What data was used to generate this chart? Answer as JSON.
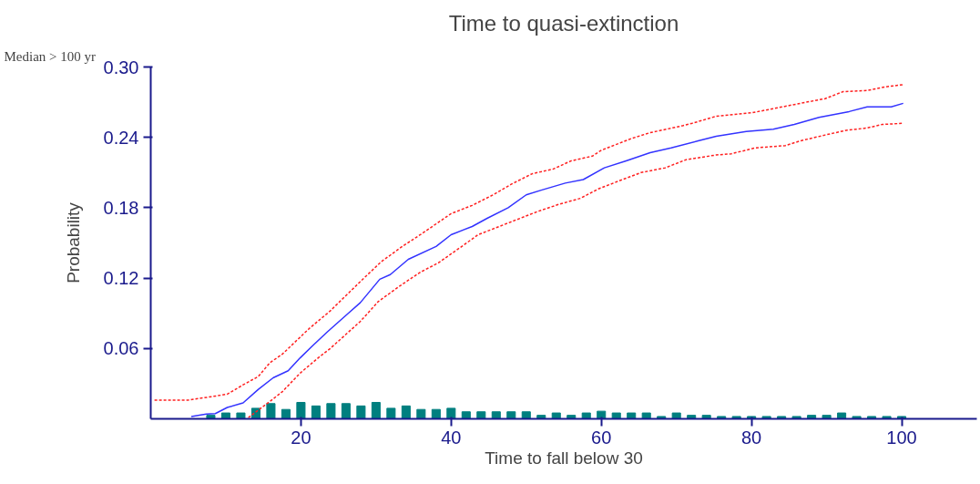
{
  "chart_data": {
    "type": "line",
    "title": "Time to quasi-extinction",
    "xlabel": "Time to fall below 30",
    "ylabel": "Probability",
    "annotations": [
      "Median > 100 yr"
    ],
    "xlim": [
      0,
      110
    ],
    "xticks": [
      20,
      40,
      60,
      80,
      100
    ],
    "ylim": [
      0,
      0.3
    ],
    "yticks": [
      {
        "value": 0.06,
        "label": "0.06"
      },
      {
        "value": 0.12,
        "label": "0.12"
      },
      {
        "value": 0.18,
        "label": "0.18"
      },
      {
        "value": 0.24,
        "label": "0.24"
      },
      {
        "value": 0.3,
        "label": "0.30"
      }
    ],
    "grid": false,
    "series": [
      {
        "type": "bar",
        "color": "#007f7f",
        "x": [
          8,
          10,
          12,
          14,
          16,
          18,
          20,
          22,
          24,
          26,
          28,
          30,
          32,
          34,
          36,
          38,
          40,
          42,
          44,
          46,
          48,
          50,
          52,
          54,
          56,
          58,
          60,
          62,
          64,
          66,
          68,
          70,
          72,
          74,
          76,
          78,
          80,
          82,
          84,
          86,
          88,
          90,
          92,
          94,
          96,
          98,
          100
        ],
        "values": [
          0.003,
          0.005,
          0.005,
          0.009,
          0.013,
          0.008,
          0.014,
          0.011,
          0.013,
          0.013,
          0.011,
          0.014,
          0.009,
          0.011,
          0.008,
          0.008,
          0.009,
          0.006,
          0.006,
          0.006,
          0.006,
          0.006,
          0.003,
          0.005,
          0.003,
          0.005,
          0.0065,
          0.005,
          0.005,
          0.005,
          0.002,
          0.005,
          0.003,
          0.003,
          0.002,
          0.002,
          0.002,
          0.002,
          0.002,
          0.002,
          0.003,
          0.003,
          0.005,
          0.002,
          0.002,
          0.002,
          0.002
        ]
      },
      {
        "color": "#ff2020",
        "line_style": "dashed",
        "x": [
          0.5,
          5,
          8.2,
          10.2,
          12.3,
          14.3,
          15.9,
          17.5,
          21.1,
          23.9,
          27.9,
          30.7,
          33.5,
          35.9,
          40,
          42.8,
          45.6,
          48,
          50.8,
          53.6,
          56,
          58.8,
          60,
          64,
          66.5,
          70.9,
          72.1,
          75.3,
          80.1,
          83.3,
          87.3,
          89.8,
          92.2,
          95.4,
          97.8,
          100.2
        ],
        "values": [
          0.016,
          0.016,
          0.019,
          0.021,
          0.029,
          0.036,
          0.048,
          0.055,
          0.077,
          0.092,
          0.117,
          0.134,
          0.147,
          0.157,
          0.175,
          0.182,
          0.191,
          0.2,
          0.209,
          0.213,
          0.22,
          0.224,
          0.229,
          0.239,
          0.244,
          0.25,
          0.252,
          0.258,
          0.261,
          0.265,
          0.27,
          0.273,
          0.279,
          0.28,
          0.283,
          0.285
        ]
      },
      {
        "color": "#3333ff",
        "line_style": "solid",
        "x": [
          5.4,
          7.4,
          8.6,
          10.2,
          12.3,
          14.3,
          16.3,
          18.3,
          19.9,
          21.5,
          23.5,
          26.3,
          27.9,
          30.5,
          31.9,
          34.3,
          38,
          40,
          42.8,
          44.8,
          47.6,
          50,
          52,
          55.2,
          57.6,
          60.4,
          63.3,
          66.5,
          69.3,
          72.9,
          75.3,
          79.3,
          82.9,
          85.7,
          89,
          93,
          95.4,
          98.6,
          100.2
        ],
        "values": [
          0.002,
          0.004,
          0.0045,
          0.0097,
          0.0136,
          0.025,
          0.035,
          0.041,
          0.052,
          0.062,
          0.074,
          0.09,
          0.099,
          0.119,
          0.123,
          0.136,
          0.147,
          0.157,
          0.164,
          0.171,
          0.18,
          0.191,
          0.195,
          0.201,
          0.204,
          0.214,
          0.22,
          0.227,
          0.231,
          0.237,
          0.241,
          0.245,
          0.247,
          0.251,
          0.257,
          0.262,
          0.266,
          0.266,
          0.269
        ]
      },
      {
        "color": "#ff2020",
        "line_style": "dashed",
        "x": [
          13,
          15.9,
          17.5,
          19.9,
          22.3,
          23.9,
          27.9,
          30.3,
          33.1,
          35.9,
          38.3,
          41.2,
          43.6,
          46.4,
          49.2,
          51.6,
          54.4,
          57.2,
          59.6,
          62.4,
          65.3,
          68.5,
          71.3,
          75.3,
          77.3,
          80.5,
          84.5,
          86.5,
          89.8,
          92.6,
          95.4,
          97.4,
          100.2
        ],
        "values": [
          0.001,
          0.015,
          0.023,
          0.039,
          0.052,
          0.06,
          0.083,
          0.1,
          0.113,
          0.125,
          0.133,
          0.146,
          0.157,
          0.164,
          0.171,
          0.177,
          0.183,
          0.188,
          0.196,
          0.203,
          0.21,
          0.214,
          0.221,
          0.225,
          0.226,
          0.231,
          0.233,
          0.237,
          0.242,
          0.246,
          0.248,
          0.251,
          0.252
        ]
      }
    ]
  }
}
